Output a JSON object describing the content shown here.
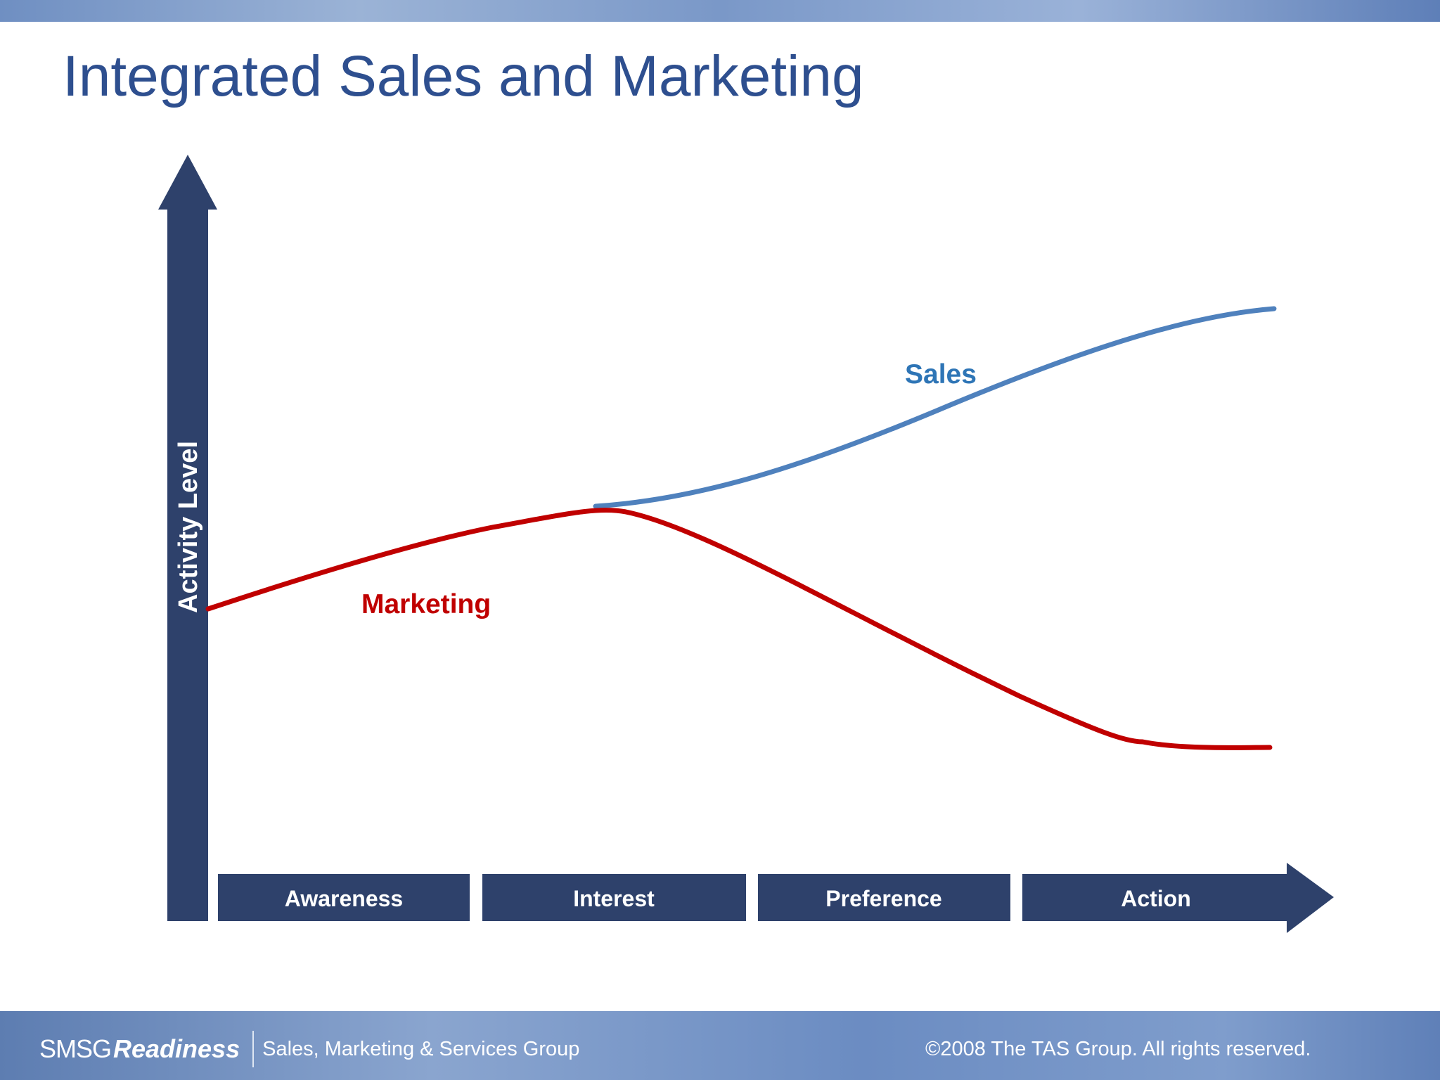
{
  "title": "Integrated Sales and Marketing",
  "axis": {
    "y_label": "Activity Level",
    "color": "#2e416b"
  },
  "stages": [
    "Awareness",
    "Interest",
    "Preference",
    "Action"
  ],
  "curves": {
    "marketing": {
      "label": "Marketing",
      "color": "#c00000"
    },
    "sales": {
      "label": "Sales",
      "color": "#4f81bd",
      "label_color": "#2e75b6"
    }
  },
  "footer": {
    "brand_smsg": "SMSG",
    "brand_readiness": "Readiness",
    "brand_group": "Sales, Marketing & Services Group",
    "copyright": "©2008 The TAS Group.  All rights reserved."
  }
}
